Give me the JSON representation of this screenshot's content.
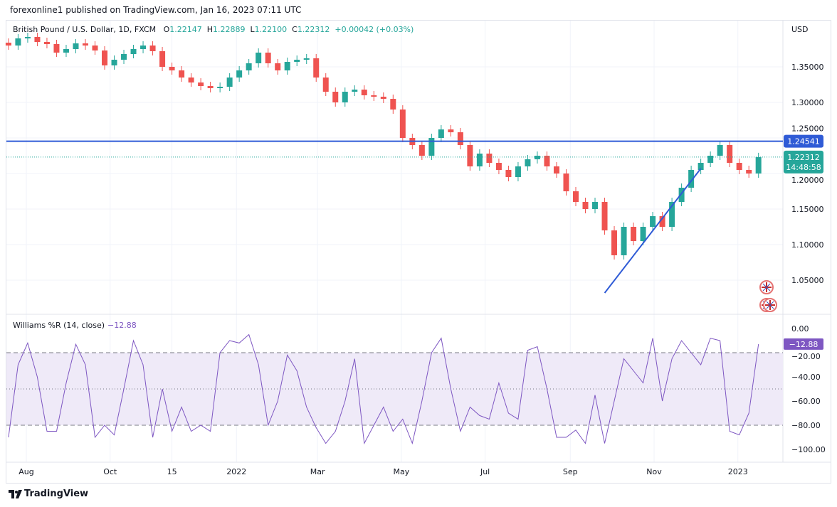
{
  "header": {
    "published": "forexonline1 published on TradingView.com, Jan 16, 2023 07:11 UTC"
  },
  "legend": {
    "symbol": "British Pound / U.S. Dollar, 1D, FXCM",
    "o_label": "O",
    "o": "1.22147",
    "h_label": "H",
    "h": "1.22889",
    "l_label": "L",
    "l": "1.22100",
    "c_label": "C",
    "c": "1.22312",
    "change": "+0.00042 (+0.03%)"
  },
  "indicator": {
    "name": "Williams %R (14, close)",
    "value": "−12.88"
  },
  "footer": {
    "brand": "TradingView"
  },
  "icons": [
    "uk-flag-icon",
    "tradingview-logo-icon"
  ],
  "colors": {
    "up": "#26a69a",
    "down": "#ef5350",
    "level_line": "#2f5bd6",
    "trend_line": "#2f5bd6",
    "wr_line": "#7e57c2",
    "wr_band": "#efeaf8"
  },
  "chart_data": [
    {
      "type": "candlestick",
      "title": "British Pound / U.S. Dollar, 1D, FXCM",
      "currency_label": "USD",
      "y_ticks": [
        "1.35000",
        "1.30000",
        "1.25000",
        "1.20000",
        "1.15000",
        "1.10000",
        "1.05000"
      ],
      "ylim": [
        1.01,
        1.42
      ],
      "x_ticks": [
        {
          "label": "Aug",
          "date": "2021-08-01"
        },
        {
          "label": "Oct",
          "date": "2021-10-01"
        },
        {
          "label": "15",
          "date": "2021-11-15"
        },
        {
          "label": "2022",
          "date": "2022-01-01"
        },
        {
          "label": "Mar",
          "date": "2022-03-01"
        },
        {
          "label": "May",
          "date": "2022-05-01"
        },
        {
          "label": "Jul",
          "date": "2022-07-01"
        },
        {
          "label": "Sep",
          "date": "2022-09-01"
        },
        {
          "label": "Nov",
          "date": "2022-11-01"
        },
        {
          "label": "2023",
          "date": "2023-01-01"
        }
      ],
      "start_date": "2021-07-19",
      "interval_days": 7,
      "closes": [
        1.38,
        1.39,
        1.392,
        1.385,
        1.382,
        1.37,
        1.375,
        1.383,
        1.38,
        1.373,
        1.352,
        1.36,
        1.368,
        1.375,
        1.38,
        1.372,
        1.35,
        1.345,
        1.335,
        1.328,
        1.323,
        1.32,
        1.322,
        1.335,
        1.345,
        1.355,
        1.37,
        1.355,
        1.345,
        1.357,
        1.36,
        1.362,
        1.335,
        1.315,
        1.3,
        1.315,
        1.318,
        1.31,
        1.308,
        1.305,
        1.29,
        1.25,
        1.24,
        1.225,
        1.25,
        1.262,
        1.258,
        1.24,
        1.21,
        1.228,
        1.215,
        1.205,
        1.195,
        1.21,
        1.22,
        1.225,
        1.21,
        1.2,
        1.175,
        1.16,
        1.15,
        1.16,
        1.12,
        1.085,
        1.125,
        1.105,
        1.125,
        1.14,
        1.125,
        1.16,
        1.18,
        1.205,
        1.215,
        1.225,
        1.24,
        1.215,
        1.205,
        1.2,
        1.22312
      ],
      "horizontal_level": {
        "price": 1.24541,
        "label": "1.24541"
      },
      "last_price": {
        "label": "1.22312",
        "countdown": "14:48:58",
        "price": 1.22312
      },
      "trend_line": {
        "start": {
          "date": "2022-09-26",
          "price": 1.032
        },
        "end": {
          "date": "2022-12-05",
          "price": 1.207
        }
      }
    },
    {
      "type": "line",
      "title": "Williams %R (14, close)",
      "y_ticks": [
        "0.00",
        "−20.00",
        "−40.00",
        "−60.00",
        "−80.00",
        "−100.00"
      ],
      "ylim": [
        -100,
        0
      ],
      "levels": {
        "upper": -20,
        "middle": -50,
        "lower": -80
      },
      "last_label": "−12.88",
      "values": [
        -90,
        -30,
        -12,
        -40,
        -85,
        -85,
        -45,
        -13,
        -30,
        -90,
        -80,
        -88,
        -50,
        -10,
        -30,
        -90,
        -50,
        -85,
        -65,
        -85,
        -80,
        -85,
        -20,
        -10,
        -12,
        -5,
        -30,
        -80,
        -60,
        -22,
        -35,
        -65,
        -82,
        -95,
        -85,
        -60,
        -25,
        -95,
        -80,
        -65,
        -85,
        -75,
        -95,
        -60,
        -20,
        -8,
        -50,
        -85,
        -65,
        -72,
        -75,
        -45,
        -70,
        -75,
        -18,
        -15,
        -50,
        -90,
        -90,
        -84,
        -95,
        -55,
        -95,
        -60,
        -25,
        -35,
        -45,
        -8,
        -60,
        -25,
        -10,
        -20,
        -30,
        -8,
        -10,
        -85,
        -88,
        -70,
        -12.88
      ]
    }
  ]
}
